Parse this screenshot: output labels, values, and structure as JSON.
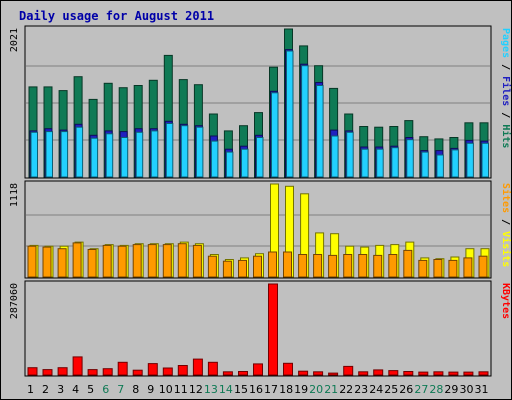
{
  "title": "Daily usage for August 2011",
  "colors": {
    "background": "#c0c0c0",
    "title": "#0000a8",
    "hits": "#0f7a55",
    "files": "#2020c0",
    "pages": "#22d0ff",
    "visits": "#ffff00",
    "sites": "#ff9a00",
    "kbytes": "#ff0000",
    "grid": "#808080"
  },
  "chart_data": [
    {
      "type": "bar",
      "name": "hits-files-pages",
      "ymax_label": "2021",
      "ymax": 2021,
      "right_labels": [
        {
          "text": "Pages",
          "key": "pages"
        },
        {
          "text": " / ",
          "key": "sep"
        },
        {
          "text": "Files",
          "key": "files"
        },
        {
          "text": " / ",
          "key": "sep"
        },
        {
          "text": "Hits",
          "key": "hits"
        }
      ],
      "categories": [
        1,
        2,
        3,
        4,
        5,
        6,
        7,
        8,
        9,
        10,
        11,
        12,
        13,
        14,
        15,
        16,
        17,
        18,
        19,
        20,
        21,
        22,
        23,
        24,
        25,
        26,
        27,
        28,
        29,
        30,
        31
      ],
      "series": [
        {
          "name": "Hits",
          "values": [
            1230,
            1230,
            1180,
            1370,
            1060,
            1280,
            1220,
            1250,
            1320,
            1660,
            1330,
            1260,
            860,
            630,
            700,
            880,
            1500,
            2021,
            1790,
            1520,
            1210,
            860,
            690,
            680,
            690,
            770,
            550,
            520,
            540,
            740,
            740
          ]
        },
        {
          "name": "Files",
          "values": [
            630,
            660,
            640,
            720,
            570,
            630,
            620,
            660,
            660,
            760,
            720,
            700,
            560,
            380,
            420,
            570,
            1170,
            1740,
            1540,
            1290,
            640,
            630,
            410,
            410,
            420,
            540,
            360,
            360,
            390,
            500,
            490
          ]
        },
        {
          "name": "Pages",
          "values": [
            610,
            620,
            620,
            680,
            530,
            590,
            540,
            610,
            630,
            730,
            700,
            680,
            490,
            340,
            380,
            540,
            1150,
            1720,
            1520,
            1250,
            560,
            610,
            380,
            380,
            400,
            510,
            340,
            300,
            370,
            460,
            460
          ]
        }
      ]
    },
    {
      "type": "bar",
      "name": "visits-sites",
      "ymax_label": "1118",
      "ymax": 1118,
      "right_labels": [
        {
          "text": "Sites",
          "key": "sites"
        },
        {
          "text": " / ",
          "key": "sep"
        },
        {
          "text": "Visits",
          "key": "visits"
        }
      ],
      "categories": [
        1,
        2,
        3,
        4,
        5,
        6,
        7,
        8,
        9,
        10,
        11,
        12,
        13,
        14,
        15,
        16,
        17,
        18,
        19,
        20,
        21,
        22,
        23,
        24,
        25,
        26,
        27,
        28,
        29,
        30,
        31
      ],
      "series": [
        {
          "name": "Visits",
          "values": [
            380,
            370,
            370,
            420,
            340,
            390,
            380,
            400,
            400,
            400,
            420,
            400,
            270,
            210,
            230,
            280,
            1118,
            1090,
            1000,
            530,
            520,
            370,
            360,
            380,
            390,
            420,
            230,
            220,
            240,
            340,
            340
          ]
        },
        {
          "name": "Sites",
          "values": [
            370,
            360,
            340,
            410,
            330,
            380,
            370,
            390,
            390,
            390,
            400,
            380,
            250,
            190,
            200,
            250,
            300,
            300,
            270,
            270,
            260,
            270,
            270,
            260,
            270,
            320,
            200,
            210,
            200,
            230,
            250
          ]
        }
      ]
    },
    {
      "type": "bar",
      "name": "kbytes",
      "ymax_label": "287060",
      "ymax": 287060,
      "right_labels": [
        {
          "text": "KBytes",
          "key": "kbytes"
        }
      ],
      "categories": [
        1,
        2,
        3,
        4,
        5,
        6,
        7,
        8,
        9,
        10,
        11,
        12,
        13,
        14,
        15,
        16,
        17,
        18,
        19,
        20,
        21,
        22,
        23,
        24,
        25,
        26,
        27,
        28,
        29,
        30,
        31
      ],
      "series": [
        {
          "name": "KBytes",
          "values": [
            23000,
            17000,
            23000,
            57000,
            17000,
            20000,
            40000,
            15000,
            36000,
            22000,
            30000,
            50000,
            40000,
            10000,
            11000,
            35000,
            287060,
            37000,
            12000,
            10000,
            6000,
            27000,
            10000,
            16000,
            14000,
            11000,
            9000,
            10000,
            9000,
            9000,
            10000
          ]
        }
      ]
    }
  ],
  "x_labels": [
    "1",
    "2",
    "3",
    "4",
    "5",
    "6",
    "7",
    "8",
    "9",
    "10",
    "11",
    "12",
    "13",
    "14",
    "15",
    "16",
    "17",
    "18",
    "19",
    "20",
    "21",
    "22",
    "23",
    "24",
    "25",
    "26",
    "27",
    "28",
    "29",
    "30",
    "31"
  ],
  "weekend_days": [
    6,
    7,
    13,
    14,
    20,
    21,
    27,
    28
  ]
}
